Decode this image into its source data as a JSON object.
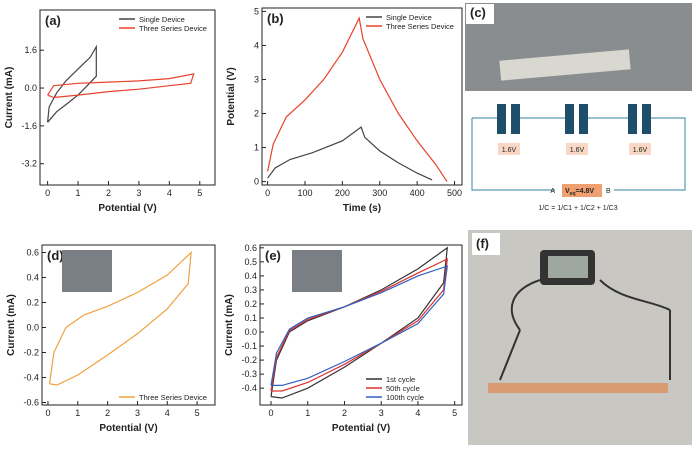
{
  "chart_data": [
    {
      "type": "line",
      "panel_label": "(a)",
      "xlabel": "Potential (V)",
      "ylabel": "Current (mA)",
      "xlim": [
        -0.25,
        5.5
      ],
      "ylim": [
        -4.1,
        3.3
      ],
      "xticks": [
        0,
        1,
        2,
        3,
        4,
        5
      ],
      "yticks": [
        1.6,
        {
          "value": 0,
          "label": "0.0"
        },
        -1.6,
        -3.2
      ],
      "legend": "upper right",
      "series": [
        {
          "name": "Single Device",
          "color": "#444444",
          "x": [
            0,
            0.05,
            0.3,
            0.6,
            1.0,
            1.4,
            1.6,
            1.6,
            1.3,
            1.0,
            0.6,
            0.3,
            0
          ],
          "values": [
            -1.45,
            -0.8,
            -0.2,
            0.3,
            0.8,
            1.3,
            1.75,
            0.5,
            0.1,
            -0.3,
            -0.7,
            -1.0,
            -1.45
          ]
        },
        {
          "name": "Three Series Device",
          "color": "#e8412c",
          "x": [
            0,
            0.2,
            1,
            2,
            3,
            4,
            4.8,
            4.7,
            4,
            3,
            2,
            1,
            0.2,
            0
          ],
          "values": [
            -0.3,
            0.1,
            0.2,
            0.25,
            0.3,
            0.4,
            0.6,
            0.2,
            0.1,
            -0.05,
            -0.15,
            -0.3,
            -0.4,
            -0.3
          ]
        }
      ]
    },
    {
      "type": "line",
      "panel_label": "(b)",
      "xlabel": "Time (s)",
      "ylabel": "Potential (V)",
      "xlim": [
        -15,
        520
      ],
      "ylim": [
        -0.1,
        5.1
      ],
      "xticks": [
        0,
        100,
        200,
        300,
        400,
        500
      ],
      "yticks": [
        0,
        1,
        2,
        3,
        4,
        5
      ],
      "legend": "upper right",
      "series": [
        {
          "name": "Single Device",
          "color": "#444444",
          "x": [
            0,
            20,
            60,
            120,
            200,
            250,
            260,
            300,
            350,
            400,
            440
          ],
          "values": [
            0.1,
            0.4,
            0.65,
            0.85,
            1.2,
            1.6,
            1.3,
            0.9,
            0.55,
            0.25,
            0.05
          ]
        },
        {
          "name": "Three Series Device",
          "color": "#e8412c",
          "x": [
            0,
            15,
            50,
            100,
            150,
            200,
            245,
            255,
            300,
            350,
            400,
            450,
            480
          ],
          "values": [
            0.3,
            1.1,
            1.9,
            2.4,
            3.0,
            3.8,
            4.8,
            4.2,
            3.0,
            2.0,
            1.2,
            0.5,
            0
          ]
        }
      ]
    },
    {
      "type": "line",
      "panel_label": "(d)",
      "xlabel": "Potential (V)",
      "ylabel": "Current (mA)",
      "xlim": [
        -0.2,
        5.6
      ],
      "ylim": [
        -0.62,
        0.66
      ],
      "xticks": [
        0,
        1,
        2,
        3,
        4,
        5
      ],
      "yticks": [
        0.6,
        0.4,
        0.2,
        {
          "value": 0,
          "label": "0.0"
        },
        -0.2,
        -0.4,
        -0.6
      ],
      "legend": "lower right",
      "series": [
        {
          "name": "Three Series Device",
          "color": "#f0a040",
          "x": [
            0.05,
            0.2,
            0.6,
            1.2,
            2,
            3,
            4,
            4.8,
            4.7,
            4,
            3,
            2,
            1,
            0.3,
            0.05
          ],
          "values": [
            -0.45,
            -0.2,
            0,
            0.1,
            0.17,
            0.28,
            0.42,
            0.6,
            0.35,
            0.15,
            -0.05,
            -0.22,
            -0.38,
            -0.46,
            -0.45
          ]
        }
      ]
    },
    {
      "type": "line",
      "panel_label": "(e)",
      "xlabel": "Potential (V)",
      "ylabel": "Current (mA)",
      "xlim": [
        -0.3,
        5.2
      ],
      "ylim": [
        -0.52,
        0.62
      ],
      "xticks": [
        0,
        1,
        2,
        3,
        4,
        5
      ],
      "yticks": [
        0.6,
        0.5,
        0.4,
        0.3,
        0.2,
        0.1,
        {
          "value": 0,
          "label": "0.0"
        },
        -0.1,
        -0.2,
        -0.3,
        -0.4
      ],
      "legend": "lower right",
      "series": [
        {
          "name": "1st cycle",
          "color": "#333333",
          "x": [
            0,
            0.15,
            0.5,
            1,
            2,
            3,
            4,
            4.8,
            4.7,
            4,
            3,
            2,
            1,
            0.3,
            0
          ],
          "values": [
            -0.46,
            -0.2,
            0,
            0.08,
            0.18,
            0.3,
            0.45,
            0.6,
            0.35,
            0.1,
            -0.08,
            -0.25,
            -0.4,
            -0.47,
            -0.46
          ]
        },
        {
          "name": "50th cycle",
          "color": "#e03030",
          "x": [
            0,
            0.15,
            0.5,
            1,
            2,
            3,
            4,
            4.8,
            4.7,
            4,
            3,
            2,
            1,
            0.3,
            0
          ],
          "values": [
            -0.42,
            -0.18,
            0.01,
            0.09,
            0.18,
            0.29,
            0.42,
            0.52,
            0.3,
            0.08,
            -0.08,
            -0.23,
            -0.36,
            -0.42,
            -0.42
          ]
        },
        {
          "name": "100th cycle",
          "color": "#3060c0",
          "x": [
            0,
            0.15,
            0.5,
            1,
            2,
            3,
            4,
            4.8,
            4.7,
            4,
            3,
            2,
            1,
            0.3,
            0
          ],
          "values": [
            -0.38,
            -0.15,
            0.02,
            0.1,
            0.18,
            0.28,
            0.4,
            0.47,
            0.27,
            0.06,
            -0.08,
            -0.21,
            -0.33,
            -0.38,
            -0.38
          ]
        }
      ]
    }
  ],
  "panel_c": {
    "panel_label": "(c)",
    "cells": [
      "1.6V",
      "1.6V",
      "1.6V"
    ],
    "terminal_a": "A",
    "terminal_b": "B",
    "veq_symbol": "V",
    "veq_subscript": "eq",
    "veq_value": "=4.8V",
    "formula": "1/C = 1/C1 + 1/C2 + 1/C3"
  },
  "panel_f": {
    "panel_label": "(f)"
  }
}
